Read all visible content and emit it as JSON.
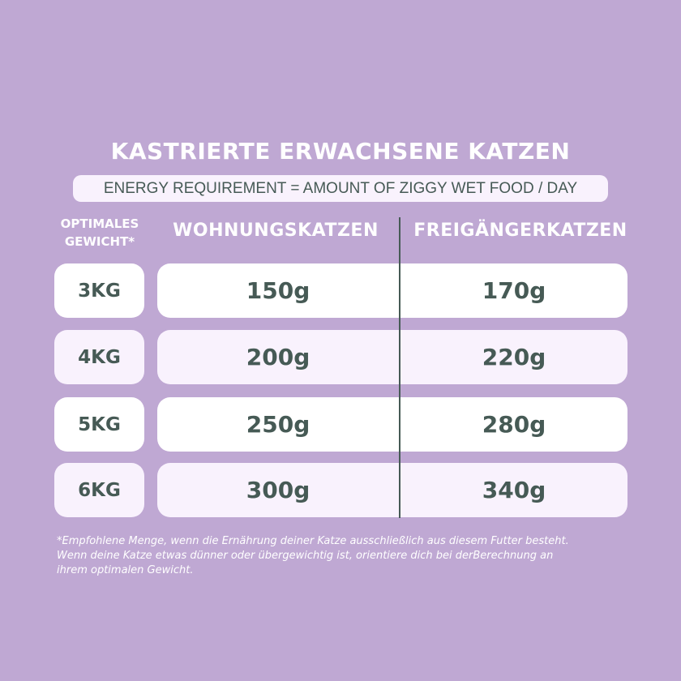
{
  "title": "KASTRIERTE ERWACHSENE KATZEN",
  "subtitle": "ENERGY REQUIREMENT = AMOUNT OF ZIGGY WET FOOD / DAY",
  "headers": {
    "weight_line1": "OPTIMALES",
    "weight_line2": "GEWICHT*",
    "indoor": "WOHNUNGSKATZEN",
    "outdoor": "FREIGÄNGERKATZEN"
  },
  "rows": [
    {
      "weight": "3KG",
      "indoor": "150g",
      "outdoor": "170g"
    },
    {
      "weight": "4KG",
      "indoor": "200g",
      "outdoor": "220g"
    },
    {
      "weight": "5KG",
      "indoor": "250g",
      "outdoor": "280g"
    },
    {
      "weight": "6KG",
      "indoor": "300g",
      "outdoor": "340g"
    }
  ],
  "footnote": [
    "*Empfohlene Menge, wenn die Ernährung deiner Katze ausschließlich aus diesem Futter besteht.",
    "Wenn deine Katze etwas dünner oder übergewichtig ist, orientiere dich bei derBerechnung an",
    "ihrem optimalen Gewicht."
  ],
  "colors": {
    "background": "#bfa8d3",
    "text": "#465a55",
    "row_white": "#ffffff",
    "row_pale": "#f9f2fd"
  }
}
